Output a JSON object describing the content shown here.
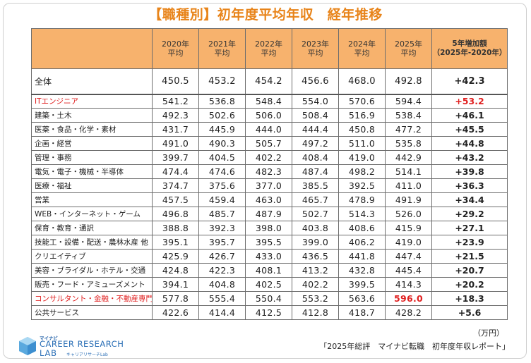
{
  "title": "【職種別】初年度平均年収　経年推移",
  "columns": [
    {
      "year": "2020年",
      "label": "平均"
    },
    {
      "year": "2021年",
      "label": "平均"
    },
    {
      "year": "2022年",
      "label": "平均"
    },
    {
      "year": "2023年",
      "label": "平均"
    },
    {
      "year": "2024年",
      "label": "平均"
    },
    {
      "year": "2025年",
      "label": "平均"
    }
  ],
  "increase_header": {
    "line1": "5年増加額",
    "line2": "（2025年-2020年）"
  },
  "rows": [
    {
      "name": "全体",
      "values": [
        "450.5",
        "453.2",
        "454.2",
        "456.6",
        "468.0",
        "492.8"
      ],
      "inc": "+42.3"
    },
    {
      "name": "ITエンジニア",
      "values": [
        "541.2",
        "536.8",
        "548.4",
        "554.0",
        "570.6",
        "594.4"
      ],
      "inc": "+53.2"
    },
    {
      "name": "建築・土木",
      "values": [
        "492.3",
        "502.6",
        "506.0",
        "508.4",
        "516.9",
        "538.4"
      ],
      "inc": "+46.1"
    },
    {
      "name": "医薬・食品・化学・素材",
      "values": [
        "431.7",
        "445.9",
        "444.0",
        "444.4",
        "450.8",
        "477.2"
      ],
      "inc": "+45.5"
    },
    {
      "name": "企画・経営",
      "values": [
        "491.0",
        "490.3",
        "505.7",
        "497.2",
        "511.0",
        "535.8"
      ],
      "inc": "+44.8"
    },
    {
      "name": "管理・事務",
      "values": [
        "399.7",
        "404.5",
        "402.2",
        "408.4",
        "419.0",
        "442.9"
      ],
      "inc": "+43.2"
    },
    {
      "name": "電気・電子・機械・半導体",
      "values": [
        "474.4",
        "474.6",
        "482.3",
        "487.4",
        "498.2",
        "514.1"
      ],
      "inc": "+39.8"
    },
    {
      "name": "医療・福祉",
      "values": [
        "374.7",
        "375.6",
        "377.0",
        "385.5",
        "392.5",
        "411.0"
      ],
      "inc": "+36.3"
    },
    {
      "name": "営業",
      "values": [
        "457.5",
        "459.4",
        "463.0",
        "465.7",
        "478.9",
        "491.9"
      ],
      "inc": "+34.4"
    },
    {
      "name": "WEB・インターネット・ゲーム",
      "values": [
        "496.8",
        "485.7",
        "487.9",
        "502.7",
        "514.3",
        "526.0"
      ],
      "inc": "+29.2"
    },
    {
      "name": "保育・教育・通訳",
      "values": [
        "388.8",
        "392.3",
        "398.0",
        "403.8",
        "408.6",
        "415.9"
      ],
      "inc": "+27.1"
    },
    {
      "name": "技能工・設備・配送・農林水産 他",
      "values": [
        "395.1",
        "395.7",
        "395.5",
        "399.0",
        "406.2",
        "419.0"
      ],
      "inc": "+23.9"
    },
    {
      "name": "クリエイティブ",
      "values": [
        "425.9",
        "426.7",
        "433.0",
        "436.5",
        "441.8",
        "447.4"
      ],
      "inc": "+21.5"
    },
    {
      "name": "美容・ブライダル・ホテル・交通",
      "values": [
        "424.8",
        "422.3",
        "408.1",
        "413.2",
        "432.8",
        "445.4"
      ],
      "inc": "+20.7"
    },
    {
      "name": "販売・フード・アミューズメント",
      "values": [
        "394.1",
        "404.8",
        "402.5",
        "402.2",
        "399.5",
        "414.3"
      ],
      "inc": "+20.2"
    },
    {
      "name": "コンサルタント・金融・不動産専門職",
      "values": [
        "577.8",
        "555.4",
        "550.4",
        "553.2",
        "563.6",
        "596.0"
      ],
      "inc": "+18.3"
    },
    {
      "name": "公共サービス",
      "values": [
        "422.6",
        "414.4",
        "412.5",
        "412.8",
        "418.7",
        "428.2"
      ],
      "inc": "+5.6"
    }
  ],
  "highlight_color": "#e02020",
  "header_color": "#f7b26d",
  "unit": "（万円）",
  "source": "「2025年総評　マイナビ転職　初年度年収レポート」",
  "logo": {
    "line0": "マイナビ",
    "line1": "CAREER RESEARCH",
    "line2": "LAB",
    "line3": "キャリアリサーチLab"
  }
}
